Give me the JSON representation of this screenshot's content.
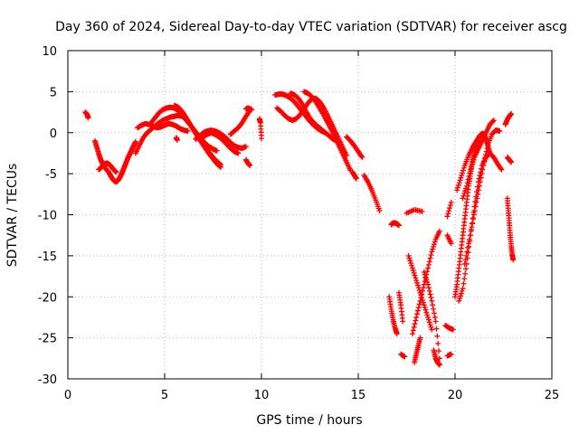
{
  "chart_data": {
    "type": "scatter",
    "title": "Day 360 of 2024, Sidereal Day-to-day VTEC variation (SDTVAR) for receiver ascg",
    "xlabel": "GPS time / hours",
    "ylabel": "SDTVAR / TECUs",
    "xlim": [
      0,
      25
    ],
    "ylim": [
      -30,
      10
    ],
    "xticks": [
      0,
      5,
      10,
      15,
      20,
      25
    ],
    "yticks": [
      -30,
      -25,
      -20,
      -15,
      -10,
      -5,
      0,
      5,
      10
    ],
    "grid": true,
    "marker": "+",
    "color": "#ff0000",
    "series": [
      {
        "name": "a1",
        "x": [
          0.9,
          1.0,
          1.05
        ],
        "y": [
          2.5,
          2.2,
          1.8
        ]
      },
      {
        "name": "a2",
        "x": [
          1.4,
          1.5,
          1.6,
          1.7,
          1.8,
          1.9,
          2.0,
          2.1,
          2.2,
          2.3,
          2.4,
          2.5,
          2.6,
          2.7,
          2.8,
          2.9,
          3.0,
          3.1,
          3.2,
          3.3,
          3.4,
          3.5
        ],
        "y": [
          -1.0,
          -1.8,
          -2.6,
          -3.3,
          -3.8,
          -4.2,
          -4.5,
          -4.8,
          -5.2,
          -5.6,
          -5.9,
          -6.0,
          -5.8,
          -5.4,
          -4.9,
          -4.3,
          -3.7,
          -3.1,
          -2.6,
          -2.1,
          -1.6,
          -1.1
        ]
      },
      {
        "name": "a3",
        "x": [
          1.6,
          1.7,
          1.8,
          1.9,
          2.0,
          2.1,
          2.2,
          2.3,
          2.4,
          2.5
        ],
        "y": [
          -4.5,
          -4.3,
          -4.0,
          -3.8,
          -3.7,
          -3.8,
          -4.0,
          -4.3,
          -4.6,
          -4.8
        ]
      },
      {
        "name": "a4",
        "x": [
          3.5,
          3.7,
          3.9,
          4.1,
          4.3,
          4.5,
          4.7,
          4.9,
          5.1,
          5.3,
          5.5,
          5.7,
          5.9,
          6.1,
          6.3,
          6.5,
          6.7,
          6.9,
          7.1,
          7.3,
          7.5,
          7.7
        ],
        "y": [
          -2.5,
          -1.5,
          -0.6,
          0.0,
          0.4,
          0.8,
          1.2,
          1.5,
          1.7,
          1.9,
          2.0,
          2.1,
          2.0,
          1.6,
          1.0,
          0.4,
          -0.2,
          -0.8,
          -1.3,
          -1.7,
          -2.0,
          -2.2
        ]
      },
      {
        "name": "a5",
        "x": [
          3.6,
          3.8,
          4.0,
          4.2,
          4.4,
          4.6,
          4.8,
          5.0,
          5.2,
          5.4,
          5.6,
          5.8,
          6.0,
          6.2
        ],
        "y": [
          0.6,
          0.9,
          1.1,
          1.0,
          0.8,
          0.6,
          0.7,
          0.9,
          1.1,
          1.0,
          0.8,
          0.5,
          0.3,
          0.2
        ]
      },
      {
        "name": "a6",
        "x": [
          4.3,
          4.5,
          4.7,
          4.9,
          5.1,
          5.3,
          5.5,
          5.7,
          5.9,
          6.1,
          6.3,
          6.5,
          6.7,
          6.9,
          7.1,
          7.3,
          7.5,
          7.7,
          7.9
        ],
        "y": [
          1.2,
          1.8,
          2.4,
          2.8,
          3.0,
          3.1,
          3.0,
          2.7,
          2.2,
          1.6,
          1.0,
          0.4,
          -0.3,
          -1.0,
          -1.7,
          -2.4,
          -3.0,
          -3.5,
          -3.9
        ]
      },
      {
        "name": "a7",
        "x": [
          5.5,
          5.7,
          5.9,
          6.1,
          6.3,
          6.5,
          6.7,
          6.9,
          7.1,
          7.3,
          7.5,
          7.7,
          7.9
        ],
        "y": [
          3.3,
          3.1,
          2.6,
          1.9,
          1.1,
          0.3,
          -0.5,
          -1.2,
          -1.9,
          -2.6,
          -3.2,
          -3.8,
          -4.2
        ]
      },
      {
        "name": "a8",
        "x": [
          5.6,
          5.65
        ],
        "y": [
          -0.6,
          -0.9
        ]
      },
      {
        "name": "a9",
        "x": [
          6.6,
          6.8,
          7.0,
          7.2,
          7.4,
          7.6,
          7.8,
          8.0,
          8.2,
          8.4,
          8.6,
          8.8,
          9.0,
          9.2
        ],
        "y": [
          -0.8,
          -0.4,
          0.0,
          0.2,
          0.3,
          0.2,
          0.0,
          -0.3,
          -0.7,
          -1.2,
          -1.6,
          -1.8,
          -1.9,
          -1.7
        ]
      },
      {
        "name": "a10",
        "x": [
          7.0,
          7.2,
          7.4,
          7.6,
          7.8,
          8.0,
          8.2,
          8.4,
          8.6,
          8.8
        ],
        "y": [
          -0.5,
          -0.2,
          0.0,
          -0.2,
          -0.5,
          -0.9,
          -1.4,
          -1.9,
          -2.3,
          -2.5
        ]
      },
      {
        "name": "a11",
        "x": [
          8.4,
          8.6,
          8.8,
          9.0,
          9.2,
          9.4
        ],
        "y": [
          -0.2,
          0.2,
          0.6,
          1.2,
          2.0,
          2.7
        ]
      },
      {
        "name": "a12",
        "x": [
          9.2,
          9.3,
          9.4,
          9.5
        ],
        "y": [
          2.9,
          3.0,
          2.9,
          2.8
        ]
      },
      {
        "name": "a13",
        "x": [
          9.2,
          9.3,
          9.4
        ],
        "y": [
          -3.3,
          -3.7,
          -4.0
        ]
      },
      {
        "name": "a14",
        "x": [
          9.9,
          9.95,
          10.0
        ],
        "y": [
          1.7,
          1.2,
          -0.7
        ]
      },
      {
        "name": "b1",
        "x": [
          10.7,
          10.9,
          11.1,
          11.3,
          11.5,
          11.7,
          11.9,
          12.1,
          12.3,
          12.5,
          12.7,
          12.9,
          13.1,
          13.3
        ],
        "y": [
          4.6,
          4.7,
          4.7,
          4.5,
          4.2,
          3.8,
          3.2,
          2.6,
          2.0,
          1.4,
          0.9,
          0.5,
          0.2,
          0.0
        ]
      },
      {
        "name": "b2",
        "x": [
          10.8,
          11.0,
          11.2,
          11.4,
          11.6,
          11.8,
          12.0,
          12.2,
          12.4,
          12.6,
          12.8,
          13.0,
          13.2,
          13.4,
          13.6,
          13.8,
          14.0,
          14.2,
          14.4
        ],
        "y": [
          3.0,
          2.6,
          2.1,
          1.7,
          1.5,
          1.7,
          2.2,
          2.9,
          3.6,
          4.1,
          4.2,
          3.8,
          3.1,
          2.2,
          1.2,
          0.2,
          -0.8,
          -1.8,
          -2.8
        ]
      },
      {
        "name": "b3",
        "x": [
          11.5,
          11.7,
          11.9,
          12.1,
          12.3,
          12.5,
          12.7,
          12.9,
          13.1,
          13.3,
          13.5,
          13.7,
          13.9
        ],
        "y": [
          4.8,
          4.6,
          4.2,
          3.5,
          2.6,
          1.8,
          1.2,
          0.8,
          0.4,
          0.0,
          -0.4,
          -0.8,
          -1.0
        ]
      },
      {
        "name": "b4",
        "x": [
          12.2,
          12.4,
          12.6,
          12.8,
          13.0,
          13.2,
          13.4,
          13.6,
          13.8,
          14.0,
          14.2,
          14.4,
          14.6
        ],
        "y": [
          5.0,
          4.8,
          4.4,
          3.8,
          3.0,
          2.2,
          1.3,
          0.4,
          -0.6,
          -1.6,
          -2.6,
          -3.6,
          -4.6
        ]
      },
      {
        "name": "b5",
        "x": [
          14.4,
          14.6,
          14.8,
          15.0,
          15.2
        ],
        "y": [
          -0.5,
          -1.0,
          -1.6,
          -2.3,
          -3.0
        ]
      },
      {
        "name": "b6",
        "x": [
          15.3,
          15.5,
          15.7,
          15.9,
          16.1
        ],
        "y": [
          -5.2,
          -6.0,
          -7.0,
          -8.2,
          -9.5
        ]
      },
      {
        "name": "b7",
        "x": [
          14.7,
          14.8,
          14.9
        ],
        "y": [
          -4.8,
          -5.2,
          -5.6
        ]
      },
      {
        "name": "c1",
        "x": [
          16.7,
          16.8,
          16.9,
          17.0,
          17.1
        ],
        "y": [
          -11.2,
          -11.0,
          -11.0,
          -11.1,
          -11.3
        ]
      },
      {
        "name": "c2",
        "x": [
          17.5,
          17.9,
          18.3
        ],
        "y": [
          -9.8,
          -9.4,
          -9.6
        ]
      },
      {
        "name": "c3",
        "x": [
          16.6,
          16.7,
          16.8,
          16.9,
          17.0
        ],
        "y": [
          -20.0,
          -21.5,
          -22.8,
          -23.8,
          -24.5
        ]
      },
      {
        "name": "c4",
        "x": [
          17.1,
          17.2,
          17.3
        ],
        "y": [
          -19.5,
          -21.0,
          -23.0
        ]
      },
      {
        "name": "c5",
        "x": [
          17.2,
          17.4
        ],
        "y": [
          -27.0,
          -27.3
        ]
      },
      {
        "name": "c6",
        "x": [
          17.6,
          17.8,
          18.0,
          18.2,
          18.4,
          18.6,
          18.8
        ],
        "y": [
          -15.0,
          -16.5,
          -18.0,
          -19.5,
          -21.0,
          -22.5,
          -24.0
        ]
      },
      {
        "name": "c7",
        "x": [
          17.8,
          18.0,
          18.2,
          18.4,
          18.6,
          18.8,
          19.0,
          19.2
        ],
        "y": [
          -24.5,
          -22.5,
          -20.5,
          -18.5,
          -16.5,
          -14.5,
          -13.0,
          -12.0
        ]
      },
      {
        "name": "c8",
        "x": [
          17.9,
          18.0,
          18.1,
          18.2
        ],
        "y": [
          -28.0,
          -27.0,
          -26.0,
          -25.0
        ]
      },
      {
        "name": "c9",
        "x": [
          18.4,
          18.6,
          18.8,
          19.0,
          19.2
        ],
        "y": [
          -17.0,
          -18.5,
          -20.5,
          -23.0,
          -27.5
        ]
      },
      {
        "name": "c10",
        "x": [
          18.9,
          19.0,
          19.1,
          19.2
        ],
        "y": [
          -26.5,
          -27.5,
          -28.0,
          -28.3
        ]
      },
      {
        "name": "c11",
        "x": [
          19.5,
          19.7,
          19.9
        ],
        "y": [
          -23.5,
          -23.8,
          -24.0
        ]
      },
      {
        "name": "c12",
        "x": [
          19.6,
          19.8
        ],
        "y": [
          -27.2,
          -27.0
        ]
      },
      {
        "name": "c13",
        "x": [
          19.6,
          19.8
        ],
        "y": [
          -12.5,
          -13.5
        ]
      },
      {
        "name": "c14",
        "x": [
          19.6,
          19.8
        ],
        "y": [
          -10.2,
          -8.5
        ]
      },
      {
        "name": "d1",
        "x": [
          20.0,
          20.1,
          20.2,
          20.3,
          20.4,
          20.5,
          20.6,
          20.7,
          20.8,
          20.9,
          21.0,
          21.1,
          21.2,
          21.3,
          21.4,
          21.5,
          21.6,
          21.7,
          21.8
        ],
        "y": [
          -20.0,
          -18.5,
          -16.5,
          -14.5,
          -12.5,
          -10.5,
          -8.5,
          -6.5,
          -5.0,
          -3.5,
          -2.5,
          -1.5,
          -0.8,
          -0.3,
          -0.1,
          -0.2,
          -0.8,
          -1.6,
          -2.5
        ]
      },
      {
        "name": "d2",
        "x": [
          20.2,
          20.4,
          20.6,
          20.8,
          21.0,
          21.2,
          21.4,
          21.6,
          21.8,
          22.0,
          22.2,
          22.4
        ],
        "y": [
          -20.5,
          -19.0,
          -16.0,
          -12.5,
          -9.0,
          -6.0,
          -4.0,
          -3.0,
          -2.5,
          -3.0,
          -3.8,
          -4.5
        ]
      },
      {
        "name": "d3",
        "x": [
          20.4,
          20.6,
          20.8,
          21.0,
          21.2,
          21.4,
          21.6,
          21.8,
          22.0
        ],
        "y": [
          -8.0,
          -6.5,
          -4.5,
          -3.0,
          -2.0,
          -1.0,
          0.0,
          1.0,
          1.5
        ]
      },
      {
        "name": "d4",
        "x": [
          20.5,
          20.7,
          20.9,
          21.1,
          21.3,
          21.5,
          21.7,
          21.9,
          22.1,
          22.3
        ],
        "y": [
          -16.0,
          -13.5,
          -11.0,
          -8.5,
          -6.0,
          -3.5,
          -1.5,
          -0.2,
          0.3,
          0.2
        ]
      },
      {
        "name": "d5",
        "x": [
          20.1,
          20.3,
          20.5,
          20.7,
          20.9,
          21.1,
          21.3
        ],
        "y": [
          -7.0,
          -5.5,
          -4.0,
          -2.8,
          -1.8,
          -1.0,
          -0.3
        ]
      },
      {
        "name": "d6",
        "x": [
          22.6,
          22.7,
          22.8,
          22.9
        ],
        "y": [
          1.0,
          1.6,
          2.0,
          2.3
        ]
      },
      {
        "name": "d7",
        "x": [
          22.7,
          22.8,
          22.9
        ],
        "y": [
          -3.0,
          -3.3,
          -3.6
        ]
      },
      {
        "name": "d8",
        "x": [
          22.7,
          22.75,
          22.8,
          22.85,
          22.9,
          22.95,
          23.0
        ],
        "y": [
          -8.0,
          -9.5,
          -11.0,
          -12.5,
          -13.8,
          -14.8,
          -15.5
        ]
      }
    ]
  }
}
